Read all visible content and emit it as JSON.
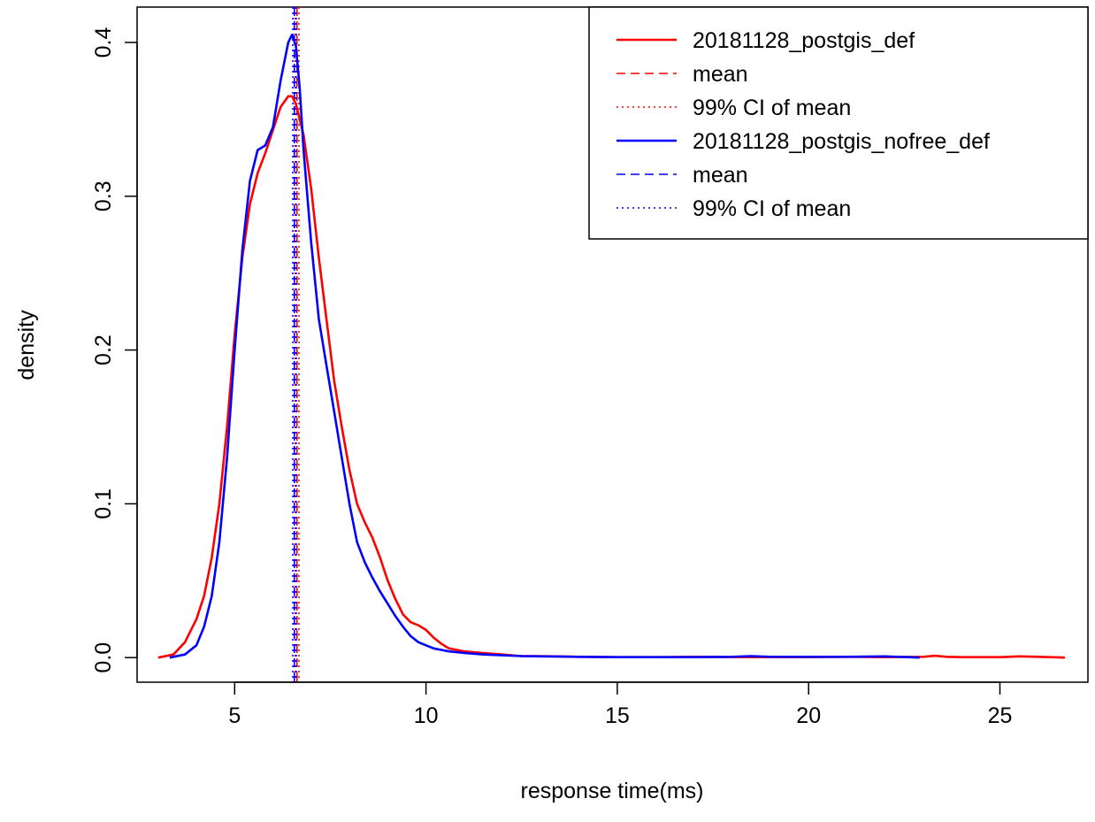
{
  "chart_data": {
    "type": "line",
    "title": "",
    "xlabel": "response time(ms)",
    "ylabel": "density",
    "xlim": [
      2.45,
      27.3
    ],
    "ylim": [
      -0.016,
      0.423
    ],
    "x_ticks": [
      5,
      10,
      15,
      20,
      25
    ],
    "y_ticks": [
      0.0,
      0.1,
      0.2,
      0.3,
      0.4
    ],
    "x_tick_labels": [
      "5",
      "10",
      "15",
      "20",
      "25"
    ],
    "y_tick_labels": [
      "0.0",
      "0.1",
      "0.2",
      "0.3",
      "0.4"
    ],
    "grid": false,
    "legend_position": "top-right",
    "legend": [
      {
        "label": "20181128_postgis_def",
        "color": "#ff0000",
        "style": "solid"
      },
      {
        "label": "mean",
        "color": "#ff0000",
        "style": "dashed"
      },
      {
        "label": "99% CI  of mean",
        "color": "#ff0000",
        "style": "dotted"
      },
      {
        "label": "20181128_postgis_nofree_def",
        "color": "#0000ff",
        "style": "solid"
      },
      {
        "label": "mean",
        "color": "#0000ff",
        "style": "dashed"
      },
      {
        "label": "99% CI  of mean",
        "color": "#0000ff",
        "style": "dotted"
      }
    ],
    "series": [
      {
        "name": "20181128_postgis_def",
        "color": "#ff0000",
        "x": [
          3.0,
          3.4,
          3.7,
          4.0,
          4.2,
          4.4,
          4.6,
          4.8,
          5.0,
          5.2,
          5.4,
          5.6,
          5.8,
          6.0,
          6.2,
          6.4,
          6.5,
          6.6,
          6.8,
          7.0,
          7.2,
          7.4,
          7.6,
          7.8,
          8.0,
          8.2,
          8.4,
          8.6,
          8.8,
          9.0,
          9.2,
          9.4,
          9.6,
          9.8,
          10.0,
          10.2,
          10.4,
          10.6,
          10.8,
          11.0,
          11.5,
          12.0,
          12.5,
          13.0,
          14.0,
          15.0,
          16.0,
          17.0,
          18.0,
          19.0,
          20.0,
          21.0,
          22.0,
          23.0,
          23.3,
          23.6,
          24.0,
          25.0,
          25.5,
          26.0,
          26.7
        ],
        "y": [
          0.0,
          0.002,
          0.01,
          0.025,
          0.04,
          0.065,
          0.1,
          0.15,
          0.21,
          0.26,
          0.295,
          0.315,
          0.328,
          0.343,
          0.358,
          0.365,
          0.365,
          0.36,
          0.34,
          0.305,
          0.26,
          0.22,
          0.18,
          0.15,
          0.122,
          0.1,
          0.088,
          0.078,
          0.065,
          0.05,
          0.038,
          0.028,
          0.023,
          0.021,
          0.018,
          0.013,
          0.009,
          0.006,
          0.005,
          0.004,
          0.003,
          0.002,
          0.001,
          0.001,
          0.0005,
          0.0003,
          0.0003,
          0.0005,
          0.0003,
          0.0003,
          0.0003,
          0.0005,
          0.0003,
          0.0005,
          0.0012,
          0.0005,
          0.0003,
          0.0003,
          0.0008,
          0.0005,
          0.0
        ]
      },
      {
        "name": "20181128_postgis_nofree_def",
        "color": "#0000ff",
        "x": [
          3.3,
          3.7,
          4.0,
          4.2,
          4.4,
          4.6,
          4.8,
          5.0,
          5.2,
          5.4,
          5.6,
          5.8,
          6.0,
          6.2,
          6.4,
          6.5,
          6.6,
          6.7,
          6.8,
          7.0,
          7.2,
          7.4,
          7.6,
          7.8,
          8.0,
          8.2,
          8.4,
          8.6,
          8.8,
          9.0,
          9.2,
          9.4,
          9.6,
          9.8,
          10.0,
          10.2,
          10.4,
          10.6,
          11.0,
          11.5,
          12.0,
          12.5,
          13.0,
          14.0,
          15.0,
          16.0,
          17.0,
          18.0,
          18.5,
          19.0,
          20.0,
          21.0,
          22.0,
          22.9
        ],
        "y": [
          0.0,
          0.002,
          0.008,
          0.02,
          0.04,
          0.075,
          0.13,
          0.2,
          0.265,
          0.31,
          0.33,
          0.333,
          0.345,
          0.375,
          0.4,
          0.405,
          0.398,
          0.37,
          0.33,
          0.27,
          0.22,
          0.19,
          0.16,
          0.13,
          0.1,
          0.075,
          0.062,
          0.052,
          0.043,
          0.035,
          0.027,
          0.02,
          0.014,
          0.01,
          0.008,
          0.006,
          0.005,
          0.004,
          0.003,
          0.002,
          0.0015,
          0.001,
          0.0008,
          0.0005,
          0.0003,
          0.0003,
          0.0003,
          0.0005,
          0.001,
          0.0005,
          0.0005,
          0.0005,
          0.0008,
          0.0
        ]
      }
    ],
    "reference_lines": [
      {
        "series": "20181128_postgis_def",
        "kind": "mean",
        "x": 6.63,
        "color": "#ff0000",
        "style": "dashed"
      },
      {
        "series": "20181128_postgis_def",
        "kind": "ci_low",
        "x": 6.58,
        "color": "#ff0000",
        "style": "dotted"
      },
      {
        "series": "20181128_postgis_def",
        "kind": "ci_high",
        "x": 6.68,
        "color": "#ff0000",
        "style": "dotted"
      },
      {
        "series": "20181128_postgis_nofree_def",
        "kind": "mean",
        "x": 6.56,
        "color": "#0000ff",
        "style": "dashed"
      },
      {
        "series": "20181128_postgis_nofree_def",
        "kind": "ci_low",
        "x": 6.52,
        "color": "#0000ff",
        "style": "dotted"
      },
      {
        "series": "20181128_postgis_nofree_def",
        "kind": "ci_high",
        "x": 6.61,
        "color": "#0000ff",
        "style": "dotted"
      }
    ]
  }
}
